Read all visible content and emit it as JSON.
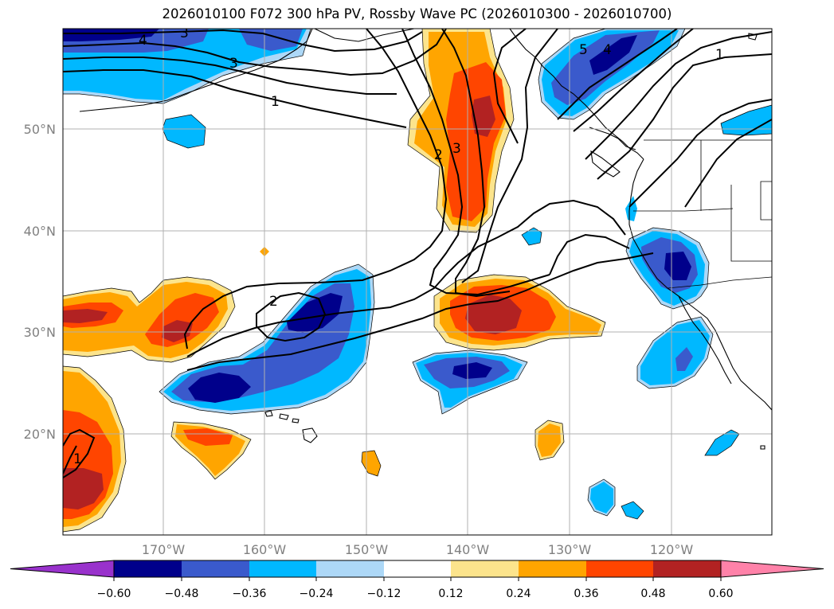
{
  "title": "2026010100 F072 300 hPa PV, Rossby Wave PC (2026010300 - 2026010700)",
  "map": {
    "region": "North Pacific",
    "lon_ticks": [
      "170°W",
      "160°W",
      "150°W",
      "140°W",
      "130°W",
      "120°W"
    ],
    "lat_ticks": [
      "50°N",
      "40°N",
      "30°N",
      "20°N"
    ],
    "contour_labels": [
      "4",
      "3",
      "3",
      "1",
      "2",
      "3",
      "2",
      "5",
      "4",
      "1",
      "1"
    ],
    "fill_colors": {
      "neg3": "#00008b",
      "neg2": "#3a5acc",
      "neg1": "#00b8ff",
      "neg0": "#add8f7",
      "pos0": "#fce48c",
      "pos1": "#ffa500",
      "pos2": "#ff4500",
      "pos3": "#b22222"
    }
  },
  "colorbar": {
    "colors": [
      "#9932cc",
      "#00008b",
      "#3a5acc",
      "#00b8ff",
      "#add8f7",
      "#ffffff",
      "#fce48c",
      "#ffa500",
      "#ff4500",
      "#b22222",
      "#ff82a9"
    ],
    "ticks": [
      "−0.60",
      "−0.48",
      "−0.36",
      "−0.24",
      "−0.12",
      "0.12",
      "0.24",
      "0.36",
      "0.48",
      "0.60"
    ]
  }
}
